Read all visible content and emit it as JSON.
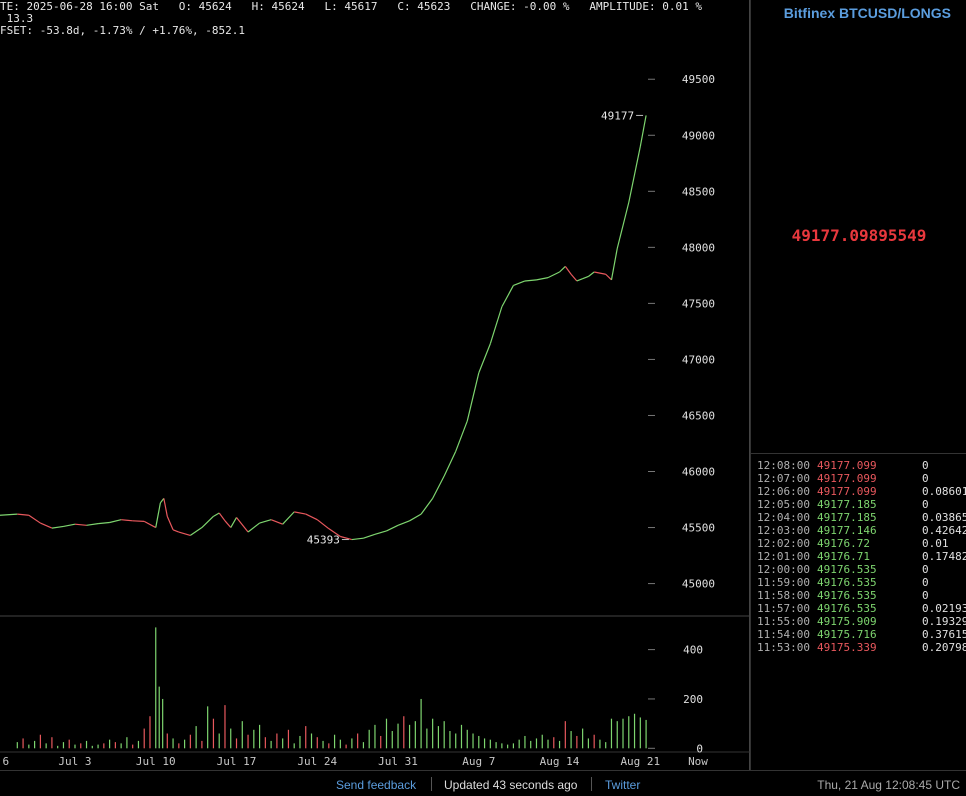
{
  "info": {
    "line1": "TE: 2025-06-28 16:00 Sat   O: 45624   H: 45624   L: 45617   C: 45623   CHANGE: -0.00 %   AMPLITUDE: 0.01 %",
    "line2": " 13.3",
    "line3": "FSET: -53.8d, -1.73% / +1.76%, -852.1"
  },
  "sidebar": {
    "title": "Bitfinex BTCUSD/LONGS",
    "last_price": "49177.09895549",
    "trades": [
      {
        "time": "12:08:00",
        "price": "49177.099",
        "amount": "0",
        "dir": "down"
      },
      {
        "time": "12:07:00",
        "price": "49177.099",
        "amount": "0",
        "dir": "down"
      },
      {
        "time": "12:06:00",
        "price": "49177.099",
        "amount": "0.08601",
        "dir": "down"
      },
      {
        "time": "12:05:00",
        "price": "49177.185",
        "amount": "0",
        "dir": "up"
      },
      {
        "time": "12:04:00",
        "price": "49177.185",
        "amount": "0.03865",
        "dir": "up"
      },
      {
        "time": "12:03:00",
        "price": "49177.146",
        "amount": "0.42642",
        "dir": "up"
      },
      {
        "time": "12:02:00",
        "price": "49176.72",
        "amount": "0.01",
        "dir": "up"
      },
      {
        "time": "12:01:00",
        "price": "49176.71",
        "amount": "0.17482",
        "dir": "up"
      },
      {
        "time": "12:00:00",
        "price": "49176.535",
        "amount": "0",
        "dir": "up"
      },
      {
        "time": "11:59:00",
        "price": "49176.535",
        "amount": "0",
        "dir": "up"
      },
      {
        "time": "11:58:00",
        "price": "49176.535",
        "amount": "0",
        "dir": "up"
      },
      {
        "time": "11:57:00",
        "price": "49176.535",
        "amount": "0.02193",
        "dir": "up"
      },
      {
        "time": "11:55:00",
        "price": "49175.909",
        "amount": "0.19329",
        "dir": "up"
      },
      {
        "time": "11:54:00",
        "price": "49175.716",
        "amount": "0.37615",
        "dir": "up"
      },
      {
        "time": "11:53:00",
        "price": "49175.339",
        "amount": "0.20798",
        "dir": "down"
      }
    ]
  },
  "footer": {
    "feedback": "Send feedback",
    "updated": "Updated 43 seconds ago",
    "twitter": "Twitter",
    "datetime": "Thu, 21 Aug 12:08:45 UTC"
  },
  "colors": {
    "up": "#7ed56f",
    "down": "#e8585d",
    "accent": "#5b9dde",
    "last_price": "#e8383d"
  },
  "chart_data": {
    "type": "line",
    "price_axis": {
      "ticks": [
        45000,
        45500,
        46000,
        46500,
        47000,
        47500,
        48000,
        48500,
        49000,
        49500
      ],
      "ylim": [
        44800,
        49850
      ]
    },
    "volume_axis": {
      "ticks": [
        0,
        200,
        400
      ],
      "ylim": [
        -15,
        520
      ]
    },
    "x_ticks": [
      {
        "label": "6",
        "day": -1
      },
      {
        "label": "Jul 3",
        "day": 5
      },
      {
        "label": "Jul 10",
        "day": 12
      },
      {
        "label": "Jul 17",
        "day": 19
      },
      {
        "label": "Jul 24",
        "day": 26
      },
      {
        "label": "Jul 31",
        "day": 33
      },
      {
        "label": "Aug 7",
        "day": 40
      },
      {
        "label": "Aug 14",
        "day": 47
      },
      {
        "label": "Aug 21",
        "day": 54
      },
      {
        "label": "Now",
        "day": 59
      }
    ],
    "price_series": [
      [
        -1.5,
        45610
      ],
      [
        0,
        45620
      ],
      [
        1,
        45610
      ],
      [
        2,
        45540
      ],
      [
        3,
        45495
      ],
      [
        4,
        45510
      ],
      [
        5,
        45530
      ],
      [
        6,
        45520
      ],
      [
        7,
        45535
      ],
      [
        8,
        45545
      ],
      [
        9,
        45570
      ],
      [
        10,
        45560
      ],
      [
        11,
        45555
      ],
      [
        12,
        45500
      ],
      [
        12.4,
        45720
      ],
      [
        12.7,
        45760
      ],
      [
        13,
        45600
      ],
      [
        13.5,
        45480
      ],
      [
        14,
        45460
      ],
      [
        15,
        45430
      ],
      [
        16,
        45500
      ],
      [
        17,
        45600
      ],
      [
        17.5,
        45630
      ],
      [
        18,
        45560
      ],
      [
        18.5,
        45500
      ],
      [
        19,
        45590
      ],
      [
        20,
        45460
      ],
      [
        21,
        45540
      ],
      [
        22,
        45570
      ],
      [
        23,
        45530
      ],
      [
        24,
        45640
      ],
      [
        25,
        45620
      ],
      [
        26,
        45570
      ],
      [
        27,
        45490
      ],
      [
        28,
        45420
      ],
      [
        29,
        45393
      ],
      [
        30,
        45405
      ],
      [
        31,
        45440
      ],
      [
        32,
        45470
      ],
      [
        33,
        45520
      ],
      [
        34,
        45560
      ],
      [
        35,
        45620
      ],
      [
        36,
        45760
      ],
      [
        37,
        45960
      ],
      [
        38,
        46180
      ],
      [
        39,
        46450
      ],
      [
        40,
        46880
      ],
      [
        41,
        47140
      ],
      [
        42,
        47470
      ],
      [
        43,
        47660
      ],
      [
        44,
        47700
      ],
      [
        45,
        47710
      ],
      [
        46,
        47730
      ],
      [
        47,
        47780
      ],
      [
        47.5,
        47830
      ],
      [
        48,
        47760
      ],
      [
        48.5,
        47700
      ],
      [
        49,
        47720
      ],
      [
        49.5,
        47740
      ],
      [
        50,
        47780
      ],
      [
        51,
        47760
      ],
      [
        51.5,
        47710
      ],
      [
        52,
        47990
      ],
      [
        53,
        48400
      ],
      [
        54,
        48900
      ],
      [
        54.5,
        49177
      ]
    ],
    "volume": [
      [
        0,
        25,
        1
      ],
      [
        0.5,
        40,
        0
      ],
      [
        1,
        15,
        1
      ],
      [
        1.5,
        30,
        1
      ],
      [
        2,
        55,
        0
      ],
      [
        2.5,
        20,
        1
      ],
      [
        3,
        45,
        0
      ],
      [
        3.5,
        10,
        1
      ],
      [
        4,
        25,
        1
      ],
      [
        4.5,
        35,
        0
      ],
      [
        5,
        15,
        1
      ],
      [
        5.5,
        20,
        0
      ],
      [
        6,
        30,
        1
      ],
      [
        6.5,
        10,
        1
      ],
      [
        7,
        15,
        1
      ],
      [
        7.5,
        20,
        0
      ],
      [
        8,
        35,
        1
      ],
      [
        8.5,
        25,
        0
      ],
      [
        9,
        20,
        1
      ],
      [
        9.5,
        45,
        1
      ],
      [
        10,
        15,
        0
      ],
      [
        10.5,
        30,
        1
      ],
      [
        11,
        80,
        0
      ],
      [
        11.5,
        130,
        0
      ],
      [
        12,
        490,
        1
      ],
      [
        12.3,
        250,
        1
      ],
      [
        12.6,
        200,
        1
      ],
      [
        13,
        60,
        0
      ],
      [
        13.5,
        40,
        1
      ],
      [
        14,
        20,
        0
      ],
      [
        14.5,
        35,
        1
      ],
      [
        15,
        55,
        0
      ],
      [
        15.5,
        90,
        1
      ],
      [
        16,
        30,
        0
      ],
      [
        16.5,
        170,
        1
      ],
      [
        17,
        120,
        0
      ],
      [
        17.5,
        60,
        1
      ],
      [
        18,
        175,
        0
      ],
      [
        18.5,
        80,
        1
      ],
      [
        19,
        40,
        0
      ],
      [
        19.5,
        110,
        1
      ],
      [
        20,
        55,
        0
      ],
      [
        20.5,
        75,
        1
      ],
      [
        21,
        95,
        1
      ],
      [
        21.5,
        45,
        0
      ],
      [
        22,
        30,
        1
      ],
      [
        22.5,
        60,
        0
      ],
      [
        23,
        40,
        1
      ],
      [
        23.5,
        75,
        0
      ],
      [
        24,
        20,
        1
      ],
      [
        24.5,
        50,
        1
      ],
      [
        25,
        90,
        0
      ],
      [
        25.5,
        60,
        1
      ],
      [
        26,
        45,
        0
      ],
      [
        26.5,
        30,
        1
      ],
      [
        27,
        20,
        0
      ],
      [
        27.5,
        55,
        1
      ],
      [
        28,
        35,
        1
      ],
      [
        28.5,
        15,
        0
      ],
      [
        29,
        40,
        1
      ],
      [
        29.5,
        60,
        0
      ],
      [
        30,
        25,
        1
      ],
      [
        30.5,
        75,
        1
      ],
      [
        31,
        95,
        1
      ],
      [
        31.5,
        50,
        0
      ],
      [
        32,
        120,
        1
      ],
      [
        32.5,
        70,
        1
      ],
      [
        33,
        100,
        1
      ],
      [
        33.5,
        130,
        0
      ],
      [
        34,
        95,
        1
      ],
      [
        34.5,
        110,
        1
      ],
      [
        35,
        200,
        1
      ],
      [
        35.5,
        80,
        1
      ],
      [
        36,
        120,
        1
      ],
      [
        36.5,
        90,
        1
      ],
      [
        37,
        110,
        1
      ],
      [
        37.5,
        70,
        1
      ],
      [
        38,
        60,
        1
      ],
      [
        38.5,
        95,
        1
      ],
      [
        39,
        75,
        1
      ],
      [
        39.5,
        60,
        1
      ],
      [
        40,
        50,
        1
      ],
      [
        40.5,
        40,
        1
      ],
      [
        41,
        35,
        1
      ],
      [
        41.5,
        25,
        1
      ],
      [
        42,
        20,
        1
      ],
      [
        42.5,
        15,
        1
      ],
      [
        43,
        20,
        1
      ],
      [
        43.5,
        35,
        1
      ],
      [
        44,
        50,
        1
      ],
      [
        44.5,
        30,
        1
      ],
      [
        45,
        40,
        1
      ],
      [
        45.5,
        55,
        1
      ],
      [
        46,
        35,
        1
      ],
      [
        46.5,
        45,
        0
      ],
      [
        47,
        30,
        1
      ],
      [
        47.5,
        110,
        0
      ],
      [
        48,
        70,
        1
      ],
      [
        48.5,
        50,
        0
      ],
      [
        49,
        80,
        1
      ],
      [
        49.5,
        40,
        1
      ],
      [
        50,
        55,
        0
      ],
      [
        50.5,
        35,
        1
      ],
      [
        51,
        25,
        1
      ],
      [
        51.5,
        120,
        1
      ],
      [
        52,
        110,
        1
      ],
      [
        52.5,
        120,
        1
      ],
      [
        53,
        130,
        1
      ],
      [
        53.5,
        140,
        1
      ],
      [
        54,
        125,
        1
      ],
      [
        54.5,
        115,
        1
      ]
    ],
    "annotations": [
      {
        "label": "49177",
        "day": 54.5,
        "value": 49177,
        "side": "left"
      },
      {
        "label": "45393",
        "day": 29,
        "value": 45393,
        "side": "left"
      }
    ]
  }
}
